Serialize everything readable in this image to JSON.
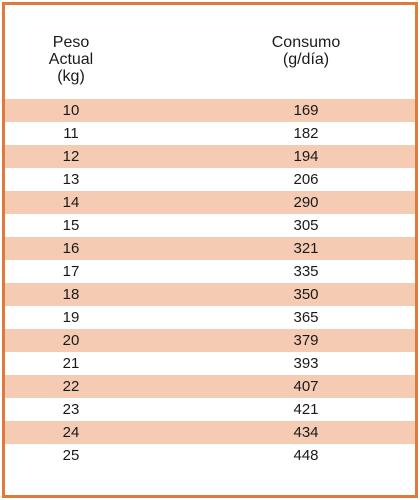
{
  "table": {
    "headers": {
      "weight": [
        "Peso",
        "Actual",
        "(kg)"
      ],
      "intake": [
        "Consumo",
        "(g/día)"
      ]
    },
    "rows": [
      {
        "weight": "10",
        "intake": "169"
      },
      {
        "weight": "11",
        "intake": "182"
      },
      {
        "weight": "12",
        "intake": "194"
      },
      {
        "weight": "13",
        "intake": "206"
      },
      {
        "weight": "14",
        "intake": "290"
      },
      {
        "weight": "15",
        "intake": "305"
      },
      {
        "weight": "16",
        "intake": "321"
      },
      {
        "weight": "17",
        "intake": "335"
      },
      {
        "weight": "18",
        "intake": "350"
      },
      {
        "weight": "19",
        "intake": "365"
      },
      {
        "weight": "20",
        "intake": "379"
      },
      {
        "weight": "21",
        "intake": "393"
      },
      {
        "weight": "22",
        "intake": "407"
      },
      {
        "weight": "23",
        "intake": "421"
      },
      {
        "weight": "24",
        "intake": "434"
      },
      {
        "weight": "25",
        "intake": "448"
      }
    ]
  },
  "colors": {
    "border": "#e07a3a",
    "stripe": "#f6cbb4"
  }
}
